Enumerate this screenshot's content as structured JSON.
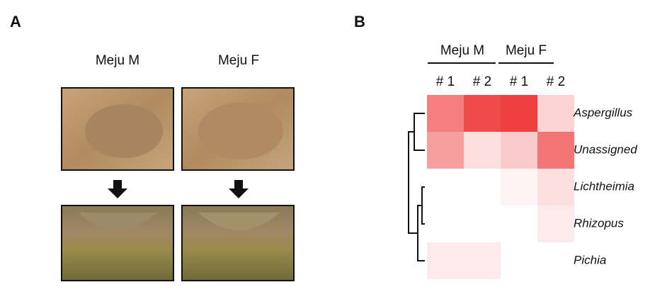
{
  "panel_a": {
    "label": "A",
    "samples": [
      "Meju M",
      "Meju F"
    ]
  },
  "panel_b": {
    "label": "B",
    "groups": [
      "Meju M",
      "Meju F"
    ],
    "columns": [
      "# 1",
      "# 2",
      "# 1",
      "# 2"
    ],
    "rows": [
      "Aspergillus",
      "Unassigned",
      "Lichtheimia",
      "Rhizopus",
      "Pichia"
    ],
    "color": "#ee2a2a",
    "range": [
      0,
      100
    ],
    "values": [
      [
        60,
        85,
        90,
        20
      ],
      [
        45,
        15,
        25,
        65
      ],
      [
        0,
        0,
        5,
        15
      ],
      [
        0,
        0,
        0,
        10
      ],
      [
        10,
        10,
        0,
        0
      ]
    ]
  }
}
